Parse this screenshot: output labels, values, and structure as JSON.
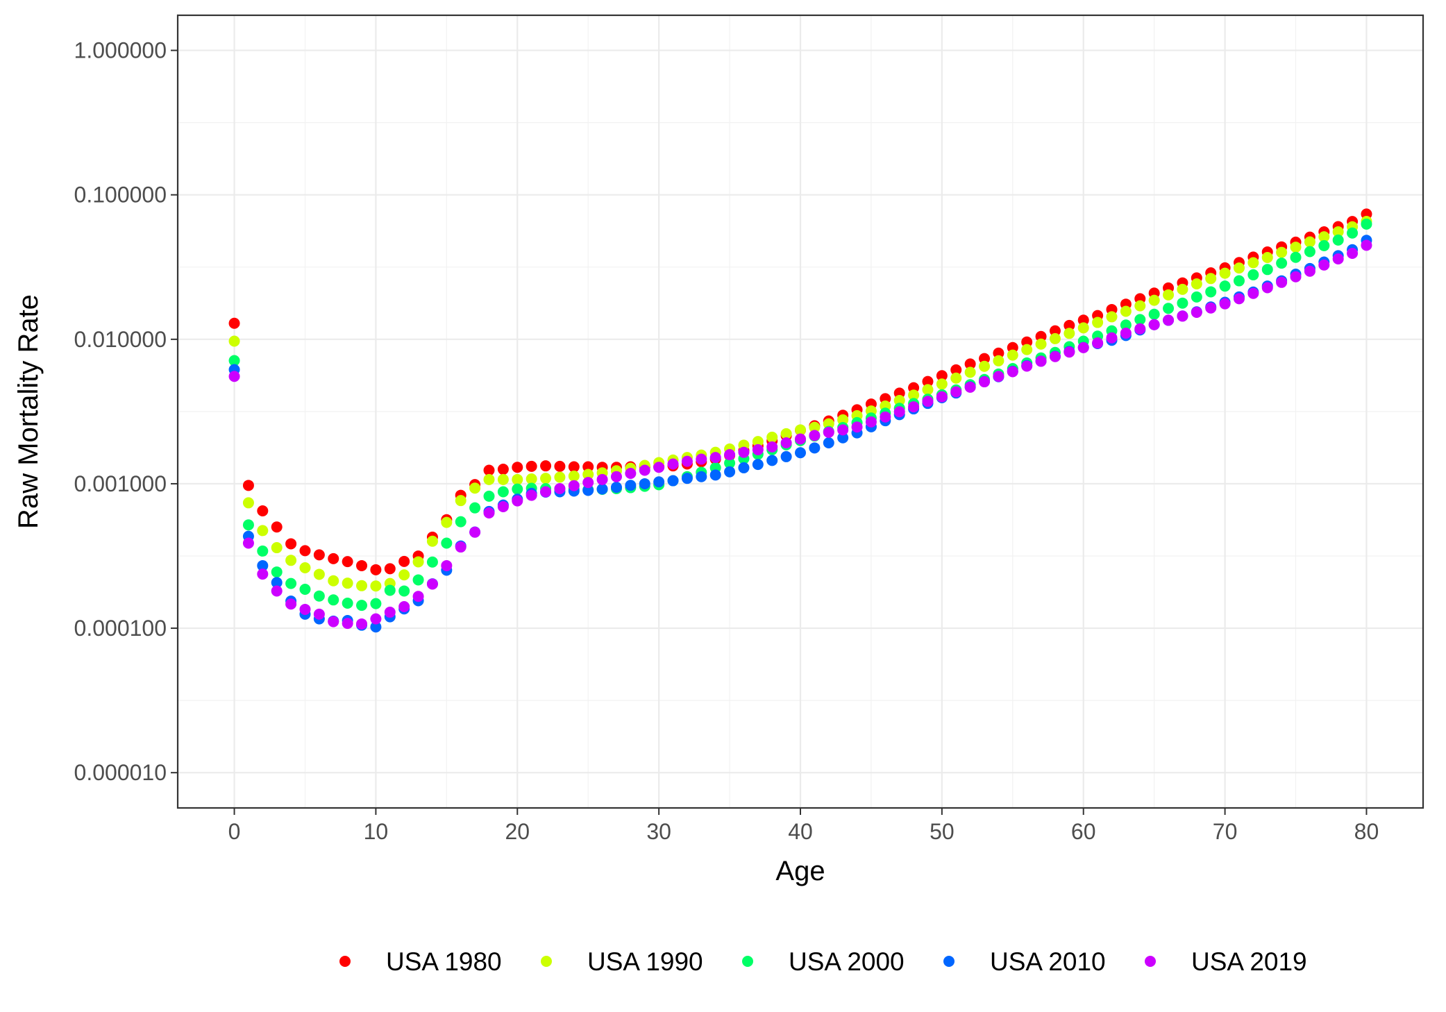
{
  "chart_data": {
    "type": "scatter",
    "title": "",
    "xlabel": "Age",
    "ylabel": "Raw Mortality Rate",
    "y_scale": "log10",
    "xlim": [
      -4,
      84
    ],
    "ylim": [
      5.7e-06,
      1.75
    ],
    "x_ticks": [
      0,
      10,
      20,
      30,
      40,
      50,
      60,
      70,
      80
    ],
    "x_tick_labels": [
      "0",
      "10",
      "20",
      "30",
      "40",
      "50",
      "60",
      "70",
      "80"
    ],
    "y_ticks": [
      1e-05,
      0.0001,
      0.001,
      0.01,
      0.1,
      1
    ],
    "y_tick_labels": [
      "0.000010",
      "0.000100",
      "0.001000",
      "0.010000",
      "0.100000",
      "1.000000"
    ],
    "grid": true,
    "legend_position": "bottom",
    "x": [
      0,
      1,
      2,
      3,
      4,
      5,
      6,
      7,
      8,
      9,
      10,
      11,
      12,
      13,
      14,
      15,
      16,
      17,
      18,
      19,
      20,
      21,
      22,
      23,
      24,
      25,
      26,
      27,
      28,
      29,
      30,
      31,
      32,
      33,
      34,
      35,
      36,
      37,
      38,
      39,
      40,
      41,
      42,
      43,
      44,
      45,
      46,
      47,
      48,
      49,
      50,
      51,
      52,
      53,
      54,
      55,
      56,
      57,
      58,
      59,
      60,
      61,
      62,
      63,
      64,
      65,
      66,
      67,
      68,
      69,
      70,
      71,
      72,
      73,
      74,
      75,
      76,
      77,
      78,
      79,
      80
    ],
    "series": [
      {
        "name": "USA 1980",
        "color": "#ff0000",
        "values": [
          0.01291,
          0.000974,
          0.000649,
          0.000502,
          0.000384,
          0.000344,
          0.000322,
          0.000303,
          0.000289,
          0.000271,
          0.000254,
          0.000258,
          0.00029,
          0.000316,
          0.000427,
          0.000564,
          0.000832,
          0.000987,
          0.00124,
          0.00126,
          0.0013,
          0.00132,
          0.00133,
          0.00132,
          0.00131,
          0.00131,
          0.0013,
          0.0013,
          0.00131,
          0.00131,
          0.00131,
          0.00133,
          0.00137,
          0.00142,
          0.00148,
          0.00157,
          0.0017,
          0.00183,
          0.00198,
          0.00215,
          0.00235,
          0.00252,
          0.00272,
          0.00298,
          0.00325,
          0.00356,
          0.00388,
          0.00424,
          0.00462,
          0.0051,
          0.0056,
          0.00614,
          0.00675,
          0.00735,
          0.00802,
          0.00876,
          0.00957,
          0.01046,
          0.01144,
          0.01247,
          0.01356,
          0.0146,
          0.01607,
          0.01751,
          0.01909,
          0.02089,
          0.02266,
          0.02457,
          0.02661,
          0.02883,
          0.03123,
          0.03397,
          0.03706,
          0.04021,
          0.04362,
          0.04702,
          0.05096,
          0.05543,
          0.06021,
          0.06536,
          0.07365
        ]
      },
      {
        "name": "USA 1990",
        "color": "#ccff00",
        "values": [
          0.00971,
          0.000738,
          0.000474,
          0.000361,
          0.000295,
          0.000262,
          0.000236,
          0.000213,
          0.000205,
          0.000197,
          0.000196,
          0.000204,
          0.000234,
          0.000288,
          0.0004,
          0.00054,
          0.000765,
          0.000933,
          0.00107,
          0.00107,
          0.00107,
          0.00108,
          0.00109,
          0.00111,
          0.00113,
          0.00116,
          0.00119,
          0.00123,
          0.00128,
          0.00134,
          0.0014,
          0.00146,
          0.00152,
          0.00158,
          0.00165,
          0.00174,
          0.00185,
          0.00196,
          0.0021,
          0.00222,
          0.00236,
          0.00246,
          0.0026,
          0.00277,
          0.00296,
          0.00319,
          0.00345,
          0.00377,
          0.00411,
          0.00448,
          0.0049,
          0.00539,
          0.00591,
          0.0065,
          0.0071,
          0.00777,
          0.00849,
          0.00926,
          0.0101,
          0.01099,
          0.012,
          0.01308,
          0.01431,
          0.01562,
          0.01704,
          0.01862,
          0.0203,
          0.02216,
          0.02418,
          0.02634,
          0.02868,
          0.03116,
          0.03389,
          0.03683,
          0.03995,
          0.04344,
          0.04721,
          0.05124,
          0.05546,
          0.06006,
          0.0655
        ]
      },
      {
        "name": "USA 2000",
        "color": "#00ff66",
        "values": [
          0.00712,
          0.000519,
          0.000342,
          0.000245,
          0.000204,
          0.000186,
          0.000167,
          0.000157,
          0.000149,
          0.000144,
          0.000148,
          0.000183,
          0.000181,
          0.000216,
          0.000287,
          0.000388,
          0.000546,
          0.000681,
          0.00082,
          0.00088,
          0.000918,
          0.00093,
          0.000925,
          0.00092,
          0.000915,
          0.00091,
          0.000915,
          0.000925,
          0.00094,
          0.00096,
          0.000985,
          0.00105,
          0.00112,
          0.0012,
          0.00129,
          0.00139,
          0.00149,
          0.0016,
          0.00172,
          0.00186,
          0.00199,
          0.00214,
          0.0023,
          0.00245,
          0.00265,
          0.00285,
          0.00308,
          0.00333,
          0.00359,
          0.00385,
          0.00413,
          0.00446,
          0.00485,
          0.00527,
          0.00575,
          0.00627,
          0.00686,
          0.00743,
          0.00811,
          0.00888,
          0.00971,
          0.01052,
          0.01144,
          0.01255,
          0.0137,
          0.01491,
          0.01637,
          0.0178,
          0.01963,
          0.02131,
          0.02335,
          0.02541,
          0.02795,
          0.03041,
          0.03366,
          0.03694,
          0.04045,
          0.04448,
          0.04863,
          0.05441,
          0.0627
        ]
      },
      {
        "name": "USA 2010",
        "color": "#0066ff",
        "values": [
          0.00617,
          0.000433,
          0.000271,
          0.000207,
          0.000154,
          0.000125,
          0.000116,
          0.000112,
          0.000113,
          0.000105,
          0.000102,
          0.00012,
          0.000136,
          0.000155,
          0.000203,
          0.000252,
          0.000371,
          0.000463,
          0.000643,
          0.000712,
          0.000782,
          0.000858,
          0.000875,
          0.00088,
          0.00089,
          0.0009,
          0.00092,
          0.000945,
          0.000975,
          0.001,
          0.00103,
          0.00105,
          0.00109,
          0.00112,
          0.00115,
          0.00121,
          0.00129,
          0.00136,
          0.00145,
          0.00154,
          0.00164,
          0.00177,
          0.00192,
          0.00208,
          0.00225,
          0.00248,
          0.00273,
          0.00301,
          0.0033,
          0.0036,
          0.00394,
          0.00425,
          0.00469,
          0.0051,
          0.00551,
          0.00601,
          0.00657,
          0.00706,
          0.00763,
          0.00824,
          0.00878,
          0.00934,
          0.00985,
          0.01062,
          0.01161,
          0.01263,
          0.01354,
          0.0145,
          0.01549,
          0.01673,
          0.01804,
          0.01965,
          0.02124,
          0.02335,
          0.0254,
          0.02823,
          0.0309,
          0.03426,
          0.03791,
          0.04171,
          0.04842
        ]
      },
      {
        "name": "USA 2019",
        "color": "#cc00ff",
        "values": [
          0.00554,
          0.000388,
          0.000237,
          0.000181,
          0.000147,
          0.000135,
          0.000125,
          0.000111,
          0.000108,
          0.000107,
          0.000116,
          0.000129,
          0.000141,
          0.000166,
          0.000202,
          0.000271,
          0.000365,
          0.000462,
          0.000628,
          0.000694,
          0.000761,
          0.000832,
          0.00088,
          0.000925,
          0.00097,
          0.00102,
          0.00107,
          0.00112,
          0.00118,
          0.00124,
          0.0013,
          0.00137,
          0.00143,
          0.00148,
          0.00152,
          0.00159,
          0.00165,
          0.00172,
          0.0018,
          0.00192,
          0.00204,
          0.00216,
          0.00227,
          0.00236,
          0.00247,
          0.00268,
          0.0029,
          0.00315,
          0.00341,
          0.00372,
          0.004,
          0.00433,
          0.00466,
          0.00508,
          0.00554,
          0.00597,
          0.00652,
          0.00705,
          0.00759,
          0.00816,
          0.00875,
          0.00944,
          0.01023,
          0.01103,
          0.01181,
          0.01263,
          0.01356,
          0.01447,
          0.01537,
          0.01647,
          0.01761,
          0.0191,
          0.02078,
          0.02275,
          0.02478,
          0.0271,
          0.02961,
          0.03268,
          0.03602,
          0.03936,
          0.04478
        ]
      }
    ]
  }
}
